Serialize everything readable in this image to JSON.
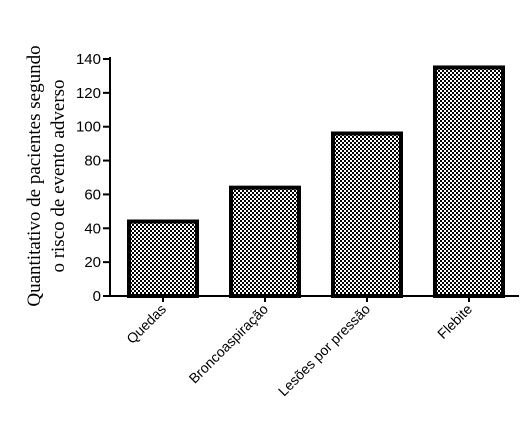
{
  "chart_data": {
    "type": "bar",
    "categories": [
      "Quedas",
      "Broncoaspiração",
      "Lesões por pressão",
      "Flebite"
    ],
    "values": [
      44,
      64,
      96,
      135
    ],
    "ylabel_lines": [
      "Quantitativo de pacientes segundo",
      "o risco de evento adverso"
    ],
    "xlabel": "",
    "title": "",
    "ylim": [
      0,
      140
    ],
    "yticks": [
      0,
      20,
      40,
      60,
      80,
      100,
      120,
      140
    ],
    "grid": false,
    "legend": "none",
    "bar_fill": "checkered black and white",
    "bar_color": "#000000"
  }
}
